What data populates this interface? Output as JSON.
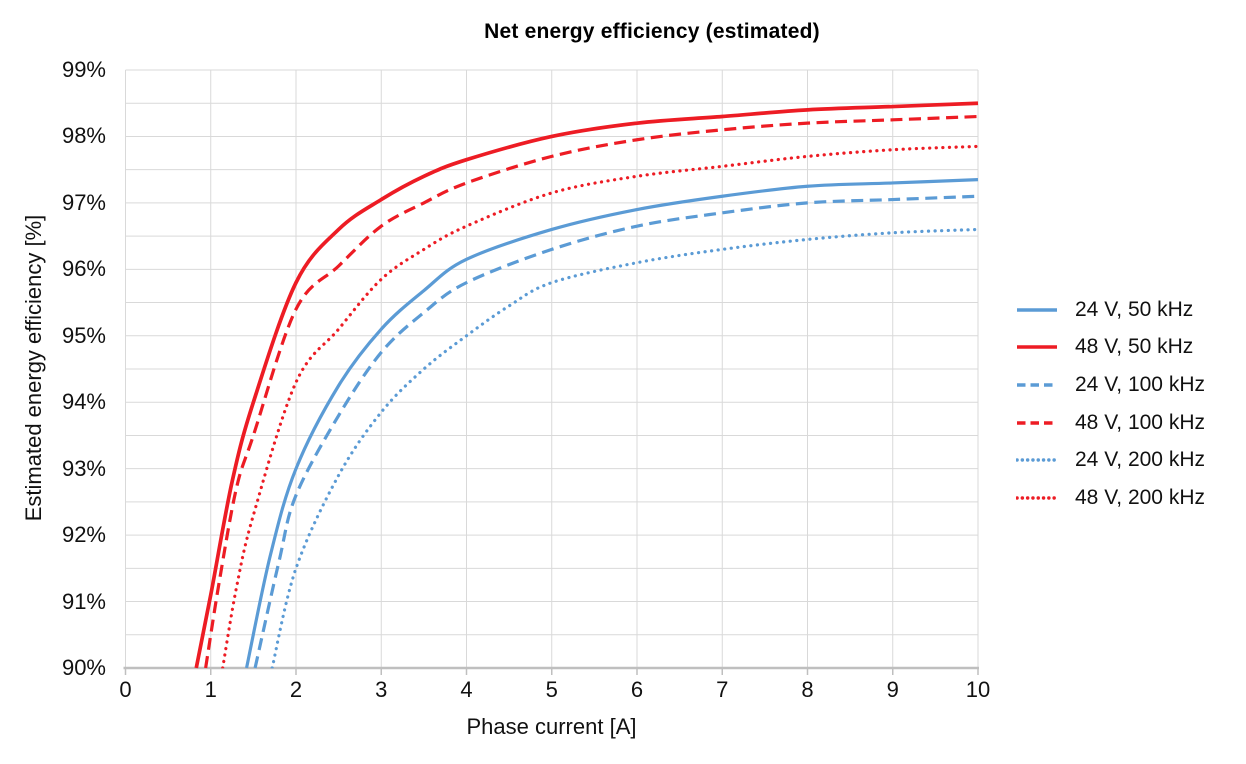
{
  "chart_data": {
    "type": "line",
    "title": "Net energy efficiency (estimated)",
    "xlabel": "Phase current [A]",
    "ylabel": "Estimated energy efficiency [%]",
    "xlim": [
      0,
      10
    ],
    "ylim": [
      90,
      99
    ],
    "x_ticks": [
      0,
      1,
      2,
      3,
      4,
      5,
      6,
      7,
      8,
      9,
      10
    ],
    "x_tick_labels": [
      "0",
      "1",
      "2",
      "3",
      "4",
      "5",
      "6",
      "7",
      "8",
      "9",
      "10"
    ],
    "y_ticks": [
      90,
      91,
      92,
      93,
      94,
      95,
      96,
      97,
      98,
      99
    ],
    "y_tick_labels": [
      "90%",
      "91%",
      "92%",
      "93%",
      "94%",
      "95%",
      "96%",
      "97%",
      "98%",
      "99%"
    ],
    "y_minor_step": 0.5,
    "grid": true,
    "legend_position": "right",
    "colors": {
      "blue": "#5B9BD5",
      "red": "#ED1C24",
      "gridline": "#D9D9D9",
      "axis_line": "#BFBFBF",
      "text": "#000000"
    },
    "series": [
      {
        "name": "24 V, 50 kHz",
        "color": "#5B9BD5",
        "style": "solid",
        "points": [
          [
            1.42,
            90
          ],
          [
            1.7,
            91.7
          ],
          [
            2,
            93.0
          ],
          [
            2.5,
            94.25
          ],
          [
            3,
            95.1
          ],
          [
            3.5,
            95.68
          ],
          [
            4,
            96.15
          ],
          [
            5,
            96.6
          ],
          [
            6,
            96.9
          ],
          [
            7,
            97.1
          ],
          [
            8,
            97.25
          ],
          [
            9,
            97.3
          ],
          [
            10,
            97.35
          ]
        ]
      },
      {
        "name": "48 V, 50 kHz",
        "color": "#ED1C24",
        "style": "solid",
        "points": [
          [
            0.83,
            90
          ],
          [
            1,
            91.1
          ],
          [
            1.25,
            92.8
          ],
          [
            1.5,
            94.0
          ],
          [
            2,
            95.8
          ],
          [
            2.5,
            96.6
          ],
          [
            3,
            97.05
          ],
          [
            3.5,
            97.4
          ],
          [
            4,
            97.65
          ],
          [
            5,
            98.0
          ],
          [
            6,
            98.2
          ],
          [
            7,
            98.3
          ],
          [
            8,
            98.4
          ],
          [
            9,
            98.45
          ],
          [
            10,
            98.5
          ]
        ]
      },
      {
        "name": "24 V, 100 kHz",
        "color": "#5B9BD5",
        "style": "dashed",
        "points": [
          [
            1.52,
            90
          ],
          [
            1.8,
            91.6
          ],
          [
            2,
            92.6
          ],
          [
            2.5,
            93.8
          ],
          [
            3,
            94.75
          ],
          [
            3.5,
            95.35
          ],
          [
            4,
            95.8
          ],
          [
            5,
            96.3
          ],
          [
            6,
            96.65
          ],
          [
            7,
            96.85
          ],
          [
            8,
            97.0
          ],
          [
            9,
            97.05
          ],
          [
            10,
            97.1
          ]
        ]
      },
      {
        "name": "48 V, 100 kHz",
        "color": "#ED1C24",
        "style": "dashed",
        "points": [
          [
            0.94,
            90
          ],
          [
            1.1,
            91.3
          ],
          [
            1.3,
            92.7
          ],
          [
            1.5,
            93.5
          ],
          [
            2,
            95.4
          ],
          [
            2.5,
            96.05
          ],
          [
            3,
            96.65
          ],
          [
            3.5,
            97.0
          ],
          [
            4,
            97.3
          ],
          [
            5,
            97.7
          ],
          [
            6,
            97.95
          ],
          [
            7,
            98.1
          ],
          [
            8,
            98.2
          ],
          [
            9,
            98.25
          ],
          [
            10,
            98.3
          ]
        ]
      },
      {
        "name": "24 V, 200 kHz",
        "color": "#5B9BD5",
        "style": "dotted",
        "points": [
          [
            1.72,
            90
          ],
          [
            2,
            91.5
          ],
          [
            2.5,
            92.9
          ],
          [
            3,
            93.85
          ],
          [
            3.5,
            94.5
          ],
          [
            4,
            95.0
          ],
          [
            4.5,
            95.45
          ],
          [
            5,
            95.8
          ],
          [
            6,
            96.1
          ],
          [
            7,
            96.3
          ],
          [
            8,
            96.45
          ],
          [
            9,
            96.55
          ],
          [
            10,
            96.6
          ]
        ]
      },
      {
        "name": "48 V, 200 kHz",
        "color": "#ED1C24",
        "style": "dotted",
        "points": [
          [
            1.14,
            90
          ],
          [
            1.3,
            91.2
          ],
          [
            1.5,
            92.3
          ],
          [
            2,
            94.3
          ],
          [
            2.5,
            95.1
          ],
          [
            3,
            95.85
          ],
          [
            3.5,
            96.3
          ],
          [
            4,
            96.65
          ],
          [
            5,
            97.15
          ],
          [
            6,
            97.4
          ],
          [
            7,
            97.55
          ],
          [
            8,
            97.7
          ],
          [
            9,
            97.8
          ],
          [
            10,
            97.85
          ]
        ]
      }
    ]
  }
}
